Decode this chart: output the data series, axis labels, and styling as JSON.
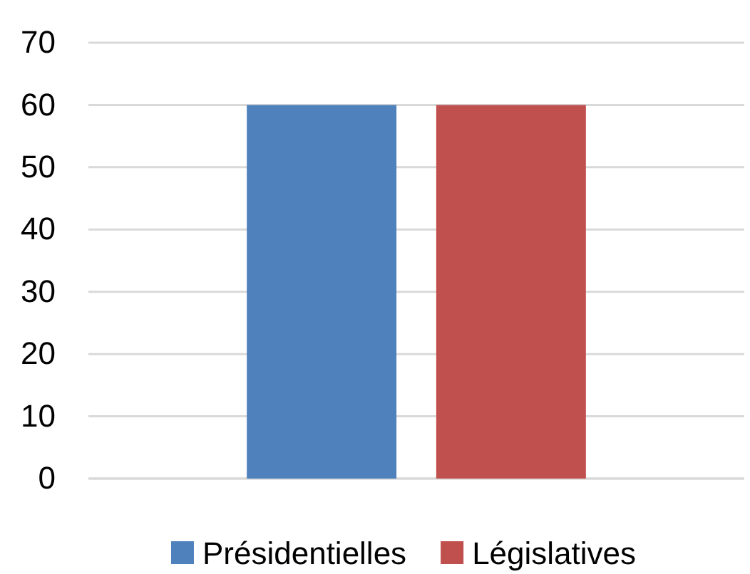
{
  "chart_data": {
    "type": "bar",
    "categories": [
      null
    ],
    "series": [
      {
        "name": "Présidentielles",
        "color": "#4f81bd",
        "values": [
          60
        ]
      },
      {
        "name": "Législatives",
        "color": "#c0504d",
        "values": [
          60
        ]
      }
    ],
    "ylim": [
      0,
      70
    ],
    "yticks": [
      0,
      10,
      20,
      30,
      40,
      50,
      60,
      70
    ],
    "grid": "y",
    "legend": "bottom"
  }
}
